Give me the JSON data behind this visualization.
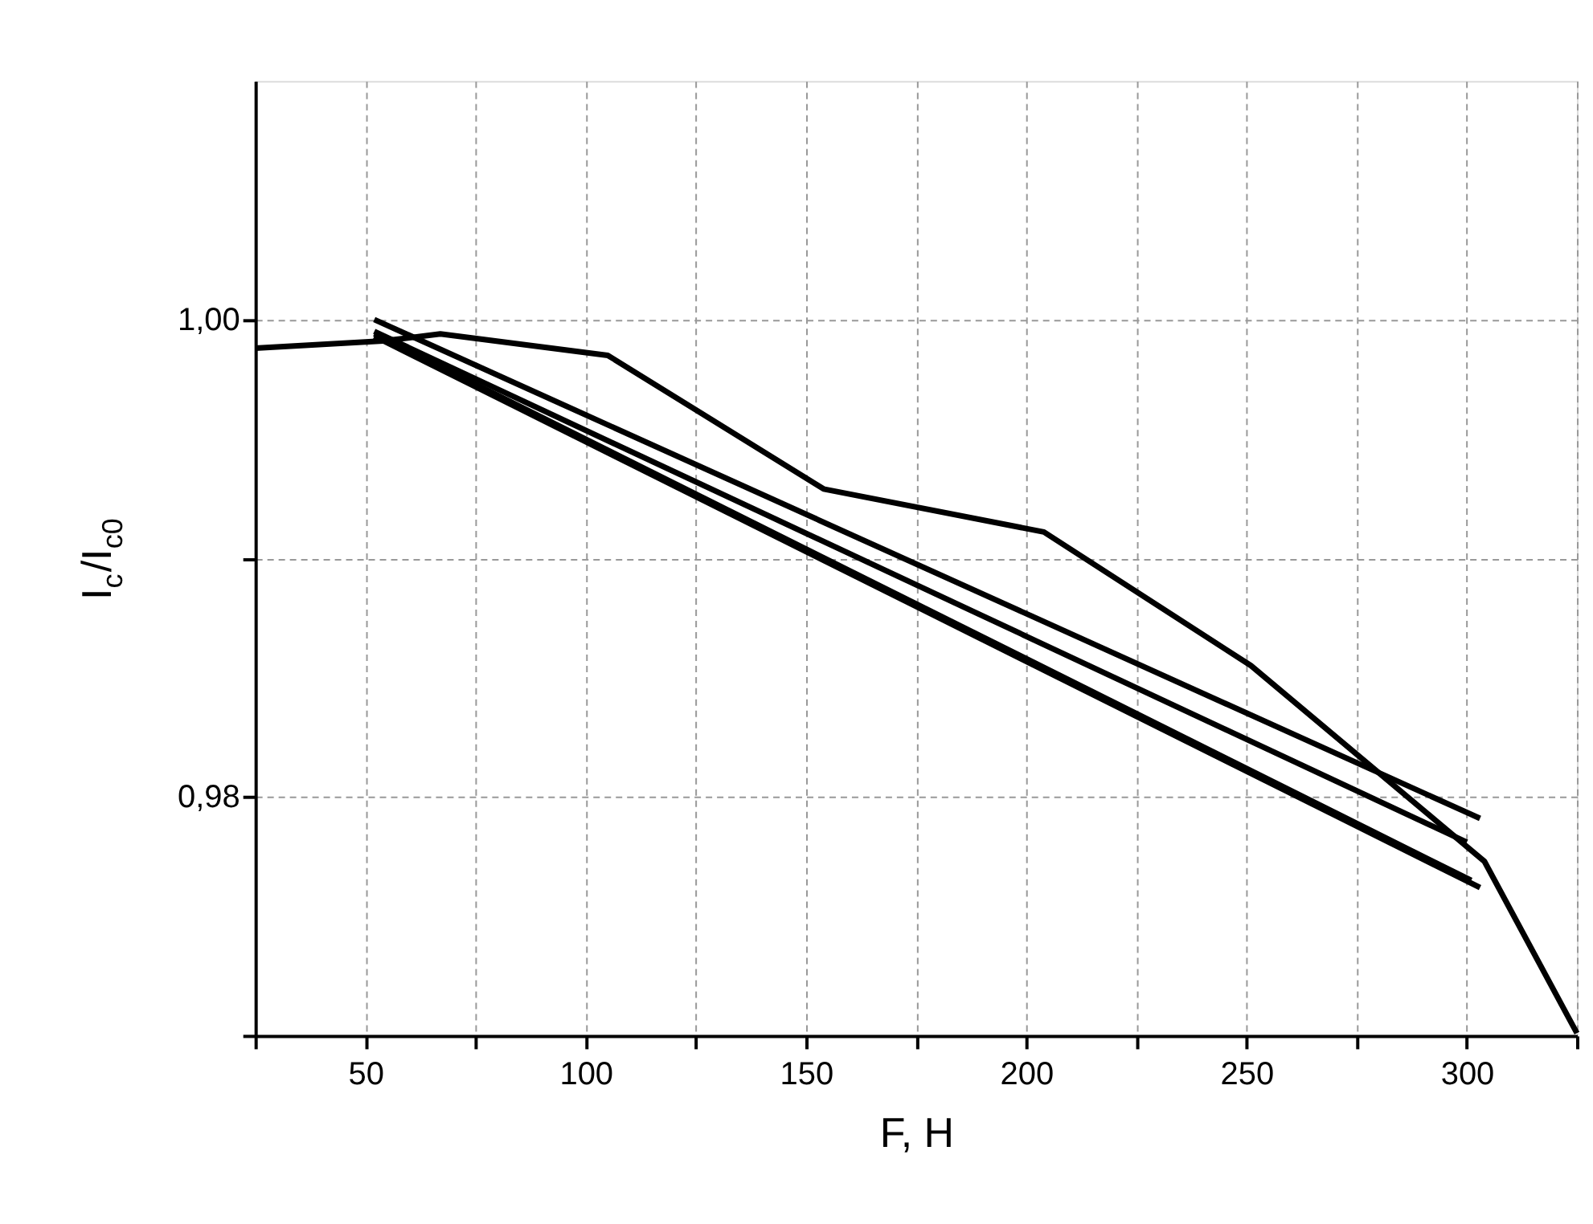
{
  "chart_data": {
    "type": "line",
    "xlabel": "F, H",
    "ylabel": "I$_{c}$/I$_{c0}$",
    "xlim": [
      25,
      325
    ],
    "ylim": [
      0.97,
      1.01
    ],
    "xticks": [
      {
        "value": 25,
        "label": null
      },
      50,
      {
        "value": 75,
        "label": null
      },
      100,
      {
        "value": 125,
        "label": null
      },
      150,
      {
        "value": 175,
        "label": null
      },
      200,
      {
        "value": 225,
        "label": null
      },
      250,
      {
        "value": 275,
        "label": null
      },
      300,
      {
        "value": 325,
        "label": null
      }
    ],
    "yticks": [
      {
        "value": 0.97,
        "label": null
      },
      {
        "value": 0.98,
        "label": "0,98"
      },
      {
        "value": 0.99,
        "label": null
      },
      {
        "value": 1.0,
        "label": "1,00"
      }
    ],
    "grid": true,
    "marker": "none",
    "line_style": "solid",
    "series": [
      {
        "color": "#000000",
        "x": [
          25,
          54,
          67,
          105,
          154,
          204,
          251,
          304,
          325
        ],
        "values": [
          0.9988,
          0.9991,
          0.9994,
          0.9985,
          0.9929,
          0.9911,
          0.9855,
          0.9773,
          0.9701
        ]
      },
      {
        "color": "#000000",
        "x": [
          52,
          303
        ],
        "values": [
          1.0,
          0.9791
        ]
      },
      {
        "color": "#000000",
        "x": [
          52,
          300
        ],
        "values": [
          0.9995,
          0.9781
        ]
      },
      {
        "color": "#000000",
        "x": [
          52,
          301
        ],
        "values": [
          0.9994,
          0.9765
        ]
      },
      {
        "color": "#000000",
        "x": [
          52,
          303
        ],
        "values": [
          0.9993,
          0.9762
        ]
      }
    ]
  }
}
